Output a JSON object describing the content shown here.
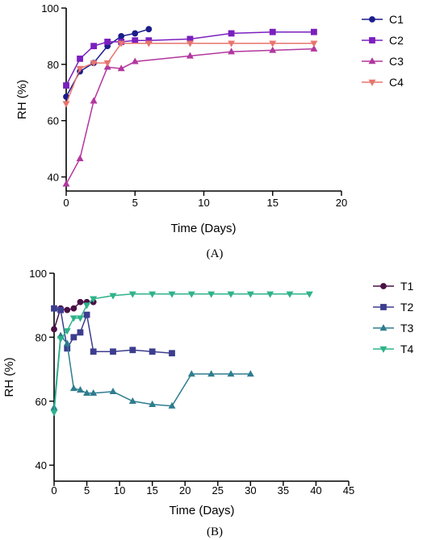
{
  "chart_data": [
    {
      "type": "line",
      "panel_label": "(A)",
      "xlabel": "Time (Days)",
      "ylabel": "RH (%)",
      "xlim": [
        0,
        20
      ],
      "ylim": [
        35,
        100
      ],
      "xticks": [
        "0",
        "5",
        "10",
        "15",
        "20"
      ],
      "yticks": [
        "40",
        "60",
        "80",
        "100"
      ],
      "legend_position": "right",
      "series": [
        {
          "name": "C1",
          "color": "#1c1c8c",
          "marker": "circle",
          "x": [
            0,
            1,
            2,
            3,
            4,
            5,
            6
          ],
          "y": [
            68.5,
            77.5,
            80.5,
            86.5,
            90,
            91,
            92.5
          ]
        },
        {
          "name": "C2",
          "color": "#7b1fbf",
          "marker": "square",
          "x": [
            0,
            1,
            2,
            3,
            4,
            5,
            6,
            9,
            12,
            15,
            18
          ],
          "y": [
            72.5,
            82,
            86.5,
            88,
            88,
            88.5,
            88.5,
            89,
            91,
            91.5,
            91.5
          ]
        },
        {
          "name": "C3",
          "color": "#b2379e",
          "marker": "triangle-up",
          "x": [
            0,
            1,
            2,
            3,
            4,
            5,
            9,
            12,
            15,
            18
          ],
          "y": [
            37.5,
            46.5,
            67,
            79,
            78.5,
            81,
            83,
            84.5,
            85,
            85.5
          ]
        },
        {
          "name": "C4",
          "color": "#e8746d",
          "marker": "triangle-down",
          "x": [
            0,
            1,
            2,
            3,
            4,
            6,
            9,
            12,
            15,
            18
          ],
          "y": [
            66,
            78.5,
            80.5,
            80.5,
            87.5,
            87.5,
            87.5,
            87.5,
            87.5,
            87.5
          ]
        }
      ]
    },
    {
      "type": "line",
      "panel_label": "(B)",
      "xlabel": "Time (Days)",
      "ylabel": "RH (%)",
      "xlim": [
        0,
        45
      ],
      "ylim": [
        35,
        100
      ],
      "xticks": [
        "0",
        "5",
        "10",
        "15",
        "20",
        "25",
        "30",
        "35",
        "40",
        "45"
      ],
      "yticks": [
        "40",
        "60",
        "80",
        "100"
      ],
      "legend_position": "right",
      "series": [
        {
          "name": "T1",
          "color": "#4a1046",
          "marker": "circle",
          "x": [
            0,
            1,
            2,
            3,
            4,
            5,
            6
          ],
          "y": [
            82.5,
            89,
            88.5,
            89,
            91,
            91,
            91
          ]
        },
        {
          "name": "T2",
          "color": "#3d3d8f",
          "marker": "square",
          "x": [
            0,
            1,
            2,
            3,
            4,
            5,
            6,
            9,
            12,
            15,
            18
          ],
          "y": [
            89,
            88.5,
            76.5,
            80,
            81.5,
            87,
            75.5,
            75.5,
            76,
            75.5,
            75
          ]
        },
        {
          "name": "T3",
          "color": "#2e7d8f",
          "marker": "triangle-up",
          "x": [
            0,
            1,
            2,
            3,
            4,
            5,
            6,
            9,
            12,
            15,
            18,
            21,
            24,
            27,
            30
          ],
          "y": [
            58,
            80.5,
            78,
            64,
            63.5,
            62.5,
            62.5,
            63,
            60,
            59,
            58.5,
            68.5,
            68.5,
            68.5,
            68.5
          ]
        },
        {
          "name": "T4",
          "color": "#2db38a",
          "marker": "triangle-down",
          "x": [
            0,
            1,
            2,
            3,
            4,
            5,
            6,
            9,
            12,
            15,
            18,
            21,
            24,
            27,
            30,
            33,
            36,
            39
          ],
          "y": [
            56.5,
            79.5,
            82,
            86,
            86,
            90,
            92,
            93,
            93.5,
            93.5,
            93.5,
            93.5,
            93.5,
            93.5,
            93.5,
            93.5,
            93.5,
            93.5
          ]
        }
      ]
    }
  ]
}
